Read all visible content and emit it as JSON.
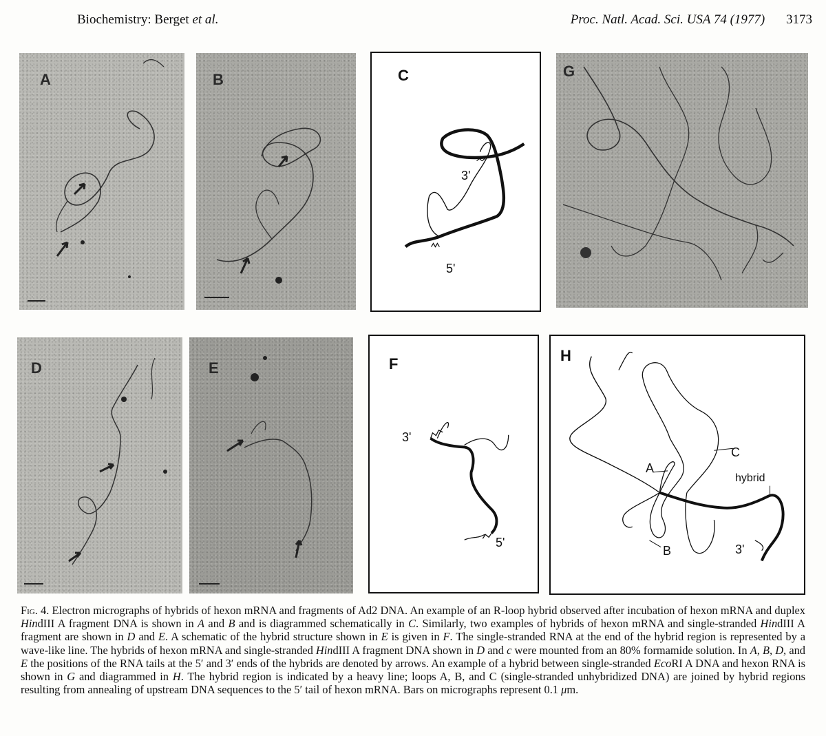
{
  "header": {
    "left_text": "Biochemistry: Berget",
    "left_italic": "et al.",
    "journal": "Proc. Natl. Acad. Sci. USA 74 (1977)",
    "page_number": "3173"
  },
  "panels": {
    "a": {
      "label": "A"
    },
    "b": {
      "label": "B"
    },
    "c": {
      "label": "C",
      "end_3": "3'",
      "end_5": "5'"
    },
    "g": {
      "label": "G"
    },
    "d": {
      "label": "D"
    },
    "e": {
      "label": "E"
    },
    "f": {
      "label": "F",
      "end_3": "3'",
      "end_5": "5'"
    },
    "h": {
      "label": "H",
      "loop_a": "A",
      "loop_b": "B",
      "loop_c": "C",
      "hybrid": "hybrid",
      "end_3": "3'"
    }
  },
  "caption": {
    "fig_label": "Fig. 4.",
    "s1": "Electron micrographs of hybrids of hexon mRNA and fragments of Ad2 DNA. An example of an R-loop hybrid observed after incubation of hexon mRNA and duplex ",
    "i1": "Hin",
    "s2": "dIII A fragment DNA is shown in ",
    "i2": "A",
    "s3": " and ",
    "i3": "B",
    "s4": " and is diagrammed schematically in ",
    "i4": "C",
    "s5": ". Similarly, two examples of hybrids of hexon mRNA and single-stranded ",
    "i5": "Hin",
    "s6": "dIII A fragment are shown in ",
    "i6": "D",
    "s7": " and ",
    "i7": "E",
    "s8": ". A schematic of the hybrid structure shown in ",
    "i8": "E",
    "s9": " is given in ",
    "i9": "F",
    "s10": ". The single-stranded RNA at the end of the hybrid region is represented by a wave-like line. The hybrids of hexon mRNA and single-stranded ",
    "i10": "Hin",
    "s11": "dIII A fragment DNA shown in ",
    "i11": "D",
    "s12": " and ",
    "i12": "c",
    "s13": " were mounted from an 80% formamide solution. In ",
    "i13": "A, B, D,",
    "s14": " and ",
    "i14": "E",
    "s15": " the positions of the RNA tails at the 5′ and 3′ ends of the hybrids are denoted by arrows. An example of a hybrid between single-stranded ",
    "i15": "Eco",
    "s16": "RI A DNA and hexon RNA is shown in ",
    "i16": "G",
    "s17": " and diagrammed in ",
    "i17": "H",
    "s18": ". The hybrid region is indicated by a heavy line; loops A, B, and C (single-stranded unhybridized DNA) are joined by hybrid regions resulting from annealing of upstream DNA sequences to the 5′ tail of hexon mRNA. Bars on micrographs represent 0.1 ",
    "i18": "μ",
    "s19": "m."
  }
}
